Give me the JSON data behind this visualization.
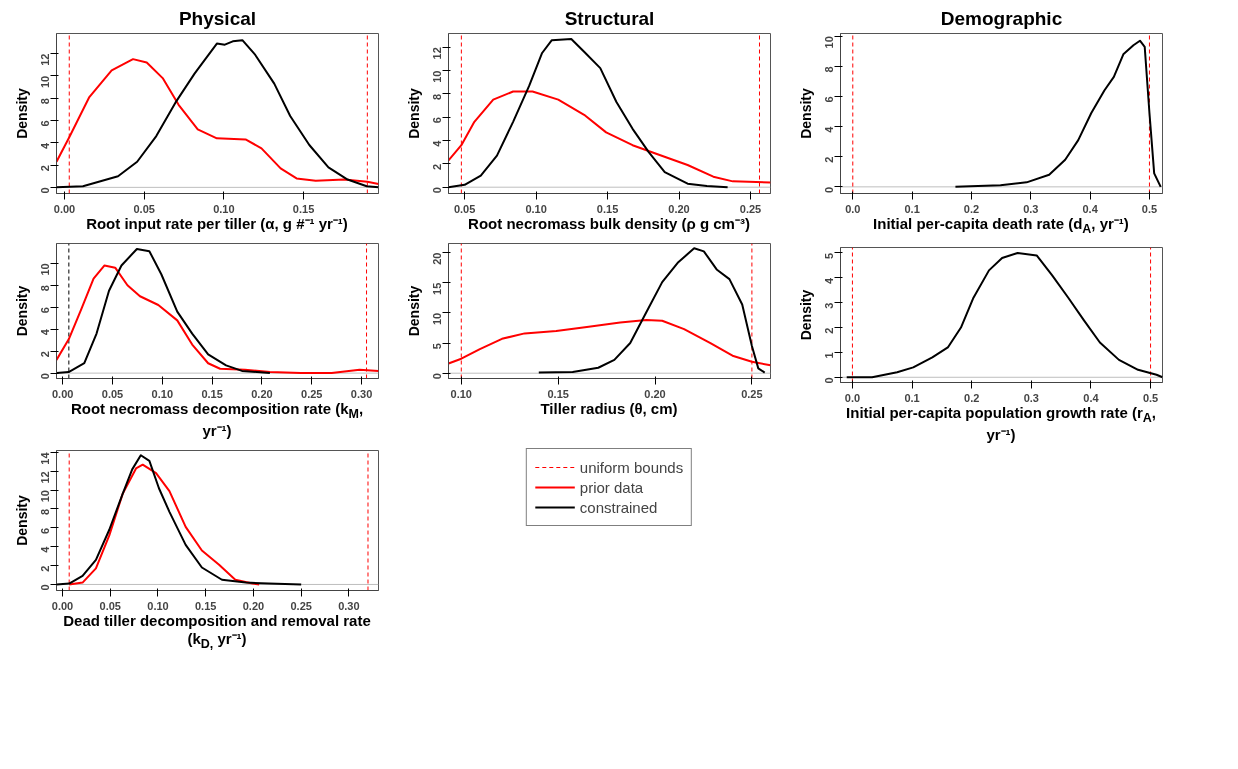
{
  "chart_data": [
    {
      "type": "line",
      "title": "Physical",
      "xlabel": "Root input rate per tiller (α, g #⁻¹ yr⁻¹)",
      "ylabel": "Density",
      "xlim": [
        -0.005,
        0.197
      ],
      "ylim": [
        -0.55,
        13.8
      ],
      "xticks": [
        {
          "value": 0,
          "label": "0.00"
        },
        {
          "value": 0.05,
          "label": "0.05"
        },
        {
          "value": 0.1,
          "label": "0.10"
        },
        {
          "value": 0.15,
          "label": "0.15"
        }
      ],
      "yticks": [
        0,
        2,
        4,
        6,
        8,
        10,
        12
      ],
      "grid": false,
      "ref_lines": [
        {
          "axis": "y",
          "value": 0,
          "color": "#bebebe",
          "line_style": "solid"
        },
        {
          "axis": "x",
          "value": 0.003,
          "color": "#ff0000",
          "line_style": "dashed"
        },
        {
          "axis": "x",
          "value": 0.19,
          "color": "#ff0000",
          "line_style": "dashed"
        }
      ],
      "series": [
        {
          "color": "#ff0000",
          "x": [
            -0.005,
            0.003,
            0.0156,
            0.0296,
            0.043,
            0.0516,
            0.0616,
            0.0716,
            0.0836,
            0.0956,
            0.1136,
            0.1236,
            0.1356,
            0.1456,
            0.1576,
            0.1756,
            0.19,
            0.197
          ],
          "values": [
            2.3,
            4.5,
            8.1,
            10.5,
            11.5,
            11.2,
            9.8,
            7.4,
            5.2,
            4.4,
            4.3,
            3.5,
            1.7,
            0.8,
            0.6,
            0.7,
            0.5,
            0.3
          ]
        },
        {
          "color": "#000000",
          "x": [
            -0.005,
            0.0116,
            0.0336,
            0.0456,
            0.0576,
            0.0696,
            0.0816,
            0.0956,
            0.1006,
            0.1056,
            0.1116,
            0.1196,
            0.1316,
            0.1416,
            0.1536,
            0.1656,
            0.1776,
            0.1896,
            0.197
          ],
          "values": [
            0.0,
            0.1,
            1.0,
            2.3,
            4.6,
            7.6,
            10.2,
            12.9,
            12.8,
            13.1,
            13.2,
            11.9,
            9.3,
            6.4,
            3.8,
            1.8,
            0.7,
            0.1,
            0.0
          ]
        }
      ]
    },
    {
      "type": "line",
      "title": "Structural",
      "xlabel": "Root necromass bulk density (ρ g cm⁻³)",
      "ylabel": "Density",
      "xlim": [
        0.0387,
        0.264
      ],
      "ylim": [
        -0.54,
        13.17
      ],
      "xticks": [
        {
          "value": 0.05,
          "label": "0.05"
        },
        {
          "value": 0.1,
          "label": "0.10"
        },
        {
          "value": 0.15,
          "label": "0.15"
        },
        {
          "value": 0.2,
          "label": "0.20"
        },
        {
          "value": 0.25,
          "label": "0.25"
        }
      ],
      "yticks": [
        0,
        2,
        4,
        6,
        8,
        10,
        12
      ],
      "grid": false,
      "ref_lines": [
        {
          "axis": "y",
          "value": 0,
          "color": "#bebebe",
          "line_style": "solid"
        },
        {
          "axis": "x",
          "value": 0.0477,
          "color": "#ff0000",
          "line_style": "dashed"
        },
        {
          "axis": "x",
          "value": 0.2563,
          "color": "#ff0000",
          "line_style": "dashed"
        }
      ],
      "series": [
        {
          "color": "#ff0000",
          "x": [
            0.0387,
            0.0477,
            0.0568,
            0.07,
            0.0839,
            0.0975,
            0.1155,
            0.1336,
            0.149,
            0.1675,
            0.1879,
            0.206,
            0.224,
            0.2376,
            0.264
          ],
          "values": [
            2.3,
            3.6,
            5.6,
            7.5,
            8.2,
            8.2,
            7.5,
            6.2,
            4.7,
            3.6,
            2.7,
            1.9,
            0.9,
            0.5,
            0.4
          ]
        },
        {
          "color": "#000000",
          "x": [
            0.0387,
            0.05,
            0.0613,
            0.0726,
            0.0839,
            0.0952,
            0.1042,
            0.111,
            0.1246,
            0.1336,
            0.1449,
            0.1562,
            0.1675,
            0.1788,
            0.19,
            0.206,
            0.2195,
            0.234
          ],
          "values": [
            0.0,
            0.2,
            1.0,
            2.7,
            5.6,
            8.7,
            11.5,
            12.6,
            12.7,
            11.6,
            10.2,
            7.3,
            5.0,
            3.0,
            1.3,
            0.3,
            0.1,
            0.0
          ]
        }
      ]
    },
    {
      "type": "line",
      "title": "Demographic",
      "xlabel": "Initial per-capita death rate (d$_{A}$, yr⁻¹)",
      "ylabel": "Density",
      "xlim": [
        -0.0207,
        0.522
      ],
      "ylim": [
        -0.44,
        10.18
      ],
      "xticks": [
        {
          "value": 0,
          "label": "0.0"
        },
        {
          "value": 0.1,
          "label": "0.1"
        },
        {
          "value": 0.2,
          "label": "0.2"
        },
        {
          "value": 0.3,
          "label": "0.3"
        },
        {
          "value": 0.4,
          "label": "0.4"
        },
        {
          "value": 0.5,
          "label": "0.5"
        }
      ],
      "yticks": [
        0,
        2,
        4,
        6,
        8,
        10
      ],
      "grid": false,
      "ref_lines": [
        {
          "axis": "y",
          "value": 0,
          "color": "#bebebe",
          "line_style": "solid"
        },
        {
          "axis": "x",
          "value": 0,
          "color": "#ff0000",
          "line_style": "dashed"
        },
        {
          "axis": "x",
          "value": 0.5,
          "color": "#ff0000",
          "line_style": "dashed"
        }
      ],
      "series": [
        {
          "color": "#000000",
          "x": [
            0.173,
            0.249,
            0.293,
            0.331,
            0.358,
            0.38,
            0.402,
            0.424,
            0.44,
            0.456,
            0.473,
            0.484,
            0.492,
            0.5,
            0.508,
            0.519
          ],
          "values": [
            0.0,
            0.1,
            0.3,
            0.8,
            1.8,
            3.1,
            4.9,
            6.4,
            7.3,
            8.8,
            9.4,
            9.7,
            9.3,
            4.9,
            0.9,
            0.0
          ]
        }
      ]
    },
    {
      "type": "line",
      "xlabel": "Root necromass decomposition rate (k$_{M}$, yr⁻¹)",
      "ylabel": "Density",
      "xlim": [
        -0.0062,
        0.317
      ],
      "ylim": [
        -0.49,
        11.8
      ],
      "xticks": [
        {
          "value": 0,
          "label": "0.00"
        },
        {
          "value": 0.05,
          "label": "0.05"
        },
        {
          "value": 0.1,
          "label": "0.10"
        },
        {
          "value": 0.15,
          "label": "0.15"
        },
        {
          "value": 0.2,
          "label": "0.20"
        },
        {
          "value": 0.25,
          "label": "0.25"
        },
        {
          "value": 0.3,
          "label": "0.30"
        }
      ],
      "yticks": [
        0,
        2,
        4,
        6,
        8,
        10
      ],
      "grid": false,
      "ref_lines": [
        {
          "axis": "y",
          "value": 0,
          "color": "#bebebe",
          "line_style": "solid"
        },
        {
          "axis": "x",
          "value": 0.0062,
          "color": "#000000",
          "line_style": "dashed"
        },
        {
          "axis": "x",
          "value": 0.305,
          "color": "#ff0000",
          "line_style": "dashed"
        }
      ],
      "series": [
        {
          "color": "#ff0000",
          "x": [
            -0.0062,
            0.0062,
            0.0186,
            0.031,
            0.042,
            0.0527,
            0.065,
            0.0776,
            0.096,
            0.115,
            0.13,
            0.146,
            0.158,
            0.183,
            0.208,
            0.239,
            0.27,
            0.298,
            0.317
          ],
          "values": [
            1.2,
            3.1,
            5.8,
            8.6,
            9.8,
            9.6,
            8.0,
            7.0,
            6.2,
            4.8,
            2.6,
            0.9,
            0.4,
            0.3,
            0.1,
            0.0,
            0.0,
            0.3,
            0.2
          ]
        },
        {
          "color": "#000000",
          "x": [
            -0.006,
            0.006,
            0.0217,
            0.034,
            0.0465,
            0.059,
            0.0745,
            0.087,
            0.099,
            0.115,
            0.13,
            0.146,
            0.164,
            0.18,
            0.195,
            0.208
          ],
          "values": [
            0.0,
            0.1,
            0.9,
            3.6,
            7.5,
            9.8,
            11.3,
            11.1,
            9.0,
            5.6,
            3.6,
            1.7,
            0.7,
            0.2,
            0.1,
            0.0
          ]
        }
      ]
    },
    {
      "type": "line",
      "xlabel": "Tiller radius (θ, cm)",
      "ylabel": "Density",
      "xlim": [
        0.0934,
        0.2596
      ],
      "ylim": [
        -0.88,
        21.5
      ],
      "legend": "bottom",
      "xticks": [
        {
          "value": 0.1,
          "label": "0.10"
        },
        {
          "value": 0.15,
          "label": "0.15"
        },
        {
          "value": 0.2,
          "label": "0.20"
        },
        {
          "value": 0.25,
          "label": "0.25"
        }
      ],
      "yticks": [
        0,
        5,
        10,
        15,
        20
      ],
      "grid": false,
      "ref_lines": [
        {
          "axis": "y",
          "value": 0,
          "color": "#bebebe",
          "line_style": "solid"
        },
        {
          "axis": "x",
          "value": 0.1,
          "color": "#ff0000",
          "line_style": "dashed",
          "label": "uniform bounds"
        },
        {
          "axis": "x",
          "value": 0.25,
          "color": "#ff0000",
          "line_style": "dashed"
        }
      ],
      "series": [
        {
          "name": "prior data",
          "color": "#ff0000",
          "x": [
            0.0934,
            0.1,
            0.1096,
            0.121,
            0.1327,
            0.149,
            0.1658,
            0.182,
            0.1955,
            0.2037,
            0.215,
            0.2286,
            0.24,
            0.25,
            0.2596
          ],
          "values": [
            1.6,
            2.4,
            4.0,
            5.7,
            6.6,
            7.0,
            7.7,
            8.4,
            8.8,
            8.7,
            7.3,
            5.0,
            2.9,
            1.9,
            1.3
          ]
        },
        {
          "name": "constrained",
          "color": "#000000",
          "x": [
            0.14,
            0.1575,
            0.1707,
            0.179,
            0.1872,
            0.1955,
            0.2037,
            0.212,
            0.2202,
            0.2252,
            0.2318,
            0.2384,
            0.245,
            0.25,
            0.2533,
            0.2566
          ],
          "values": [
            0.1,
            0.2,
            0.9,
            2.2,
            5.0,
            10.1,
            15.1,
            18.4,
            20.7,
            20.2,
            17.2,
            15.6,
            11.4,
            4.5,
            0.8,
            0.1
          ]
        }
      ]
    },
    {
      "type": "line",
      "xlabel": "Initial per-capita population growth rate (r$_{A}$, yr⁻¹)",
      "ylabel": "Density",
      "xlim": [
        -0.02,
        0.52
      ],
      "ylim": [
        -0.21,
        5.22
      ],
      "xticks": [
        {
          "value": 0,
          "label": "0.0"
        },
        {
          "value": 0.1,
          "label": "0.1"
        },
        {
          "value": 0.2,
          "label": "0.2"
        },
        {
          "value": 0.3,
          "label": "0.3"
        },
        {
          "value": 0.4,
          "label": "0.4"
        },
        {
          "value": 0.5,
          "label": "0.5"
        }
      ],
      "yticks": [
        0,
        1,
        2,
        3,
        4,
        5
      ],
      "grid": false,
      "ref_lines": [
        {
          "axis": "y",
          "value": 0,
          "color": "#bebebe",
          "line_style": "solid"
        },
        {
          "axis": "x",
          "value": 0,
          "color": "#ff0000",
          "line_style": "dashed"
        },
        {
          "axis": "x",
          "value": 0.5,
          "color": "#ff0000",
          "line_style": "dashed"
        }
      ],
      "series": [
        {
          "color": "#000000",
          "x": [
            -0.0096,
            0.033,
            0.075,
            0.102,
            0.134,
            0.16,
            0.182,
            0.203,
            0.229,
            0.251,
            0.277,
            0.309,
            0.335,
            0.362,
            0.388,
            0.415,
            0.447,
            0.479,
            0.51,
            0.52
          ],
          "values": [
            0.0,
            0.0,
            0.2,
            0.4,
            0.8,
            1.2,
            2.0,
            3.2,
            4.3,
            4.8,
            5.0,
            4.9,
            4.1,
            3.2,
            2.3,
            1.4,
            0.7,
            0.3,
            0.1,
            0.0
          ]
        }
      ]
    },
    {
      "type": "line",
      "xlabel": "Dead tiller decomposition and removal rate (k$_{D,}$ yr⁻¹)",
      "ylabel": "Density",
      "xlim": [
        -0.0063,
        0.331
      ],
      "ylim": [
        -0.64,
        14.2
      ],
      "xticks": [
        {
          "value": 0,
          "label": "0.00"
        },
        {
          "value": 0.05,
          "label": "0.05"
        },
        {
          "value": 0.1,
          "label": "0.10"
        },
        {
          "value": 0.15,
          "label": "0.15"
        },
        {
          "value": 0.2,
          "label": "0.20"
        },
        {
          "value": 0.25,
          "label": "0.25"
        },
        {
          "value": 0.3,
          "label": "0.30"
        }
      ],
      "yticks": [
        0,
        2,
        4,
        6,
        8,
        10,
        12,
        14
      ],
      "grid": false,
      "ref_lines": [
        {
          "axis": "y",
          "value": 0,
          "color": "#bebebe",
          "line_style": "solid"
        },
        {
          "axis": "x",
          "value": 0.007,
          "color": "#ff0000",
          "line_style": "dashed"
        },
        {
          "axis": "x",
          "value": 0.32,
          "color": "#ff0000",
          "line_style": "dashed"
        }
      ],
      "series": [
        {
          "color": "#ff0000",
          "x": [
            0.007,
            0.021,
            0.035,
            0.049,
            0.063,
            0.077,
            0.084,
            0.098,
            0.112,
            0.129,
            0.146,
            0.164,
            0.181,
            0.199,
            0.206
          ],
          "values": [
            0.0,
            0.2,
            1.7,
            5.2,
            9.6,
            12.3,
            12.7,
            11.8,
            9.9,
            6.1,
            3.6,
            2.1,
            0.5,
            0.1,
            0.0
          ]
        },
        {
          "color": "#000000",
          "x": [
            -0.006,
            0.007,
            0.021,
            0.035,
            0.049,
            0.063,
            0.073,
            0.082,
            0.091,
            0.101,
            0.112,
            0.129,
            0.146,
            0.167,
            0.192,
            0.216,
            0.25
          ],
          "values": [
            0.0,
            0.1,
            0.9,
            2.6,
            5.8,
            9.6,
            12.2,
            13.7,
            13.1,
            10.2,
            7.7,
            4.2,
            1.8,
            0.5,
            0.2,
            0.1,
            0.0
          ]
        }
      ]
    }
  ]
}
